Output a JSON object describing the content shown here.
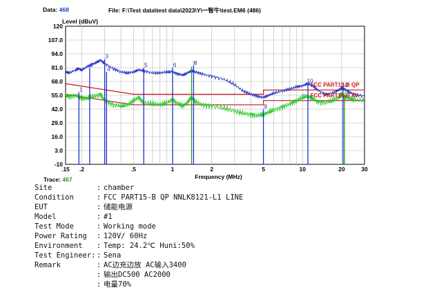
{
  "header": {
    "data_label": "Data:",
    "data_value": "468",
    "file_label": "File:",
    "file_path": "F:\\Test data\\test data\\2023\\Y\\一智牛\\test.EM6",
    "file_count": "(486)",
    "trace_label": "Trace:",
    "trace_value": "467"
  },
  "chart_data": {
    "type": "line",
    "ylabel": "Level (dBuV)",
    "xlabel": "Frequency (MHz)",
    "xscale": "log",
    "xlim": [
      0.15,
      30
    ],
    "ylim": [
      -10,
      120
    ],
    "y_ticks": [
      "120",
      "107.0",
      "94.0",
      "81.0",
      "68.0",
      "55.0",
      "42.0",
      "29.0",
      "16.0",
      "3.0",
      "-10"
    ],
    "x_ticks": [
      {
        "value": 0.15,
        "label": ".15"
      },
      {
        "value": 0.2,
        "label": ".2"
      },
      {
        "value": 0.5,
        "label": ".5"
      },
      {
        "value": 1,
        "label": "1"
      },
      {
        "value": 2,
        "label": "2"
      },
      {
        "value": 5,
        "label": "5"
      },
      {
        "value": 10,
        "label": "10"
      },
      {
        "value": 20,
        "label": "20"
      },
      {
        "value": 30,
        "label": "30"
      }
    ],
    "grid": true,
    "limits": [
      {
        "label": "FCC PART15-B QP",
        "color": "#c8141e",
        "points": [
          [
            0.15,
            66
          ],
          [
            0.5,
            56
          ],
          [
            5,
            56
          ],
          [
            5,
            60
          ],
          [
            30,
            60
          ]
        ]
      },
      {
        "label": "FCC PART15-B AV",
        "color": "#c8141e",
        "points": [
          [
            0.15,
            56
          ],
          [
            0.5,
            46
          ],
          [
            5,
            46
          ],
          [
            5,
            50
          ],
          [
            30,
            50
          ]
        ]
      }
    ],
    "series": [
      {
        "color": "#1e30c8",
        "points": [
          [
            0.15,
            77
          ],
          [
            0.16,
            76
          ],
          [
            0.18,
            79
          ],
          [
            0.19,
            80
          ],
          [
            0.2,
            79
          ],
          [
            0.22,
            82
          ],
          [
            0.24,
            84
          ],
          [
            0.26,
            86
          ],
          [
            0.28,
            88
          ],
          [
            0.3,
            85
          ],
          [
            0.35,
            80
          ],
          [
            0.4,
            77
          ],
          [
            0.45,
            76
          ],
          [
            0.5,
            77
          ],
          [
            0.55,
            79
          ],
          [
            0.6,
            78
          ],
          [
            0.7,
            76
          ],
          [
            0.8,
            76
          ],
          [
            0.9,
            77
          ],
          [
            1.0,
            77
          ],
          [
            1.1,
            75
          ],
          [
            1.2,
            74
          ],
          [
            1.3,
            76
          ],
          [
            1.4,
            78
          ],
          [
            1.5,
            77
          ],
          [
            1.7,
            75
          ],
          [
            2.0,
            73
          ],
          [
            2.5,
            70
          ],
          [
            3.0,
            65
          ],
          [
            3.5,
            59
          ],
          [
            4.0,
            56
          ],
          [
            4.5,
            54
          ],
          [
            5.0,
            53
          ],
          [
            5.5,
            55
          ],
          [
            6.0,
            57
          ],
          [
            7.0,
            59
          ],
          [
            8.0,
            61
          ],
          [
            9.0,
            63
          ],
          [
            10.0,
            64
          ],
          [
            11.0,
            66
          ],
          [
            12.0,
            64
          ],
          [
            13.0,
            60
          ],
          [
            15.0,
            56
          ],
          [
            17.0,
            57
          ],
          [
            19.0,
            60
          ],
          [
            20.0,
            62
          ],
          [
            21.0,
            61
          ],
          [
            23.0,
            58
          ],
          [
            25.0,
            56
          ],
          [
            30.0,
            54
          ]
        ]
      },
      {
        "color": "#22c822",
        "points": [
          [
            0.15,
            55
          ],
          [
            0.16,
            54
          ],
          [
            0.18,
            55
          ],
          [
            0.2,
            52
          ],
          [
            0.22,
            52
          ],
          [
            0.25,
            54
          ],
          [
            0.28,
            56
          ],
          [
            0.3,
            50
          ],
          [
            0.35,
            46
          ],
          [
            0.4,
            45
          ],
          [
            0.45,
            46
          ],
          [
            0.5,
            50
          ],
          [
            0.55,
            53
          ],
          [
            0.6,
            48
          ],
          [
            0.7,
            47
          ],
          [
            0.8,
            46
          ],
          [
            0.9,
            48
          ],
          [
            1.0,
            51
          ],
          [
            1.1,
            47
          ],
          [
            1.2,
            45
          ],
          [
            1.3,
            48
          ],
          [
            1.4,
            53
          ],
          [
            1.5,
            49
          ],
          [
            1.7,
            46
          ],
          [
            2.0,
            45
          ],
          [
            2.5,
            43
          ],
          [
            3.0,
            40
          ],
          [
            3.5,
            38
          ],
          [
            4.0,
            37
          ],
          [
            4.5,
            36
          ],
          [
            5.0,
            37
          ],
          [
            5.5,
            39
          ],
          [
            6.0,
            41
          ],
          [
            7.0,
            44
          ],
          [
            8.0,
            47
          ],
          [
            9.0,
            50
          ],
          [
            10.0,
            53
          ],
          [
            11.0,
            54
          ],
          [
            12.0,
            52
          ],
          [
            13.0,
            49
          ],
          [
            15.0,
            48
          ],
          [
            17.0,
            50
          ],
          [
            19.0,
            53
          ],
          [
            20.0,
            56
          ],
          [
            21.0,
            54
          ],
          [
            23.0,
            52
          ],
          [
            25.0,
            51
          ],
          [
            30.0,
            50
          ]
        ]
      }
    ],
    "markers": [
      {
        "label": "1",
        "x": 0.19,
        "y": 58
      },
      {
        "label": "2",
        "x": 0.23,
        "y": 81
      },
      {
        "label": "3",
        "x": 0.3,
        "y": 89
      },
      {
        "label": "4",
        "x": 0.31,
        "y": 77
      },
      {
        "label": "5",
        "x": 0.6,
        "y": 81
      },
      {
        "label": "6",
        "x": 1.0,
        "y": 81
      },
      {
        "label": "7",
        "x": 1.4,
        "y": 82
      },
      {
        "label": "8",
        "x": 1.45,
        "y": 83
      },
      {
        "label": "9",
        "x": 5.0,
        "y": 42
      },
      {
        "label": "10",
        "x": 11.0,
        "y": 66
      },
      {
        "label": "11",
        "x": 21.0,
        "y": 56
      },
      {
        "label": "12",
        "x": 20.5,
        "y": 62
      }
    ],
    "annotations": [
      {
        "text": "FCC PART15-B QP",
        "x": 11.5,
        "y": 63
      },
      {
        "text": "FCC PART15-B AV",
        "x": 11.5,
        "y": 53
      }
    ]
  },
  "info": [
    {
      "key": "Site",
      "value": "chamber"
    },
    {
      "key": "Condition",
      "value": "FCC PART15-B QP NNLK8121-L1 LINE"
    },
    {
      "key": "EUT",
      "value": "储能电源"
    },
    {
      "key": "Model",
      "value": "#1"
    },
    {
      "key": "Test Mode",
      "value": "Working mode"
    },
    {
      "key": "Power Rating",
      "value": "120V/ 60Hz"
    },
    {
      "key": "Environment",
      "value": "Temp: 24.2℃ Huni:50%"
    },
    {
      "key": "Test Engineer:",
      "value": "Sena"
    },
    {
      "key": "Remark",
      "value": "AC边充边放 AC输入3400"
    },
    {
      "key": "",
      "value": "输出DC500 AC2000"
    },
    {
      "key": "",
      "value": "电量70%"
    }
  ]
}
